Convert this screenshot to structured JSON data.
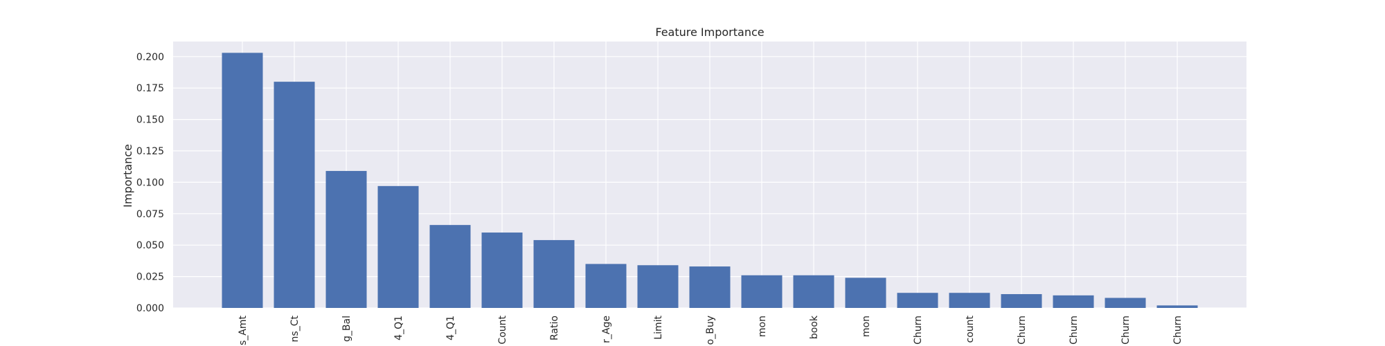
{
  "chart_data": {
    "type": "bar",
    "title": "Feature Importance",
    "xlabel": "",
    "ylabel": "Importance",
    "ylim": [
      0,
      0.212
    ],
    "yticks": [
      "0.000",
      "0.025",
      "0.050",
      "0.075",
      "0.100",
      "0.125",
      "0.150",
      "0.175",
      "0.200"
    ],
    "grid": true,
    "colors": {
      "bar": "#4c72b0",
      "plot_bg": "#eaeaf2",
      "grid": "#ffffff",
      "text": "#262626"
    },
    "categories": [
      "s_Amt",
      "ns_Ct",
      "g_Bal",
      "4_Q1",
      "4_Q1",
      "Count",
      "Ratio",
      "r_Age",
      "Limit",
      "o_Buy",
      "mon",
      "book",
      "mon",
      "Churn",
      "count",
      "Churn",
      "Churn",
      "Churn",
      "Churn"
    ],
    "values": [
      0.203,
      0.18,
      0.109,
      0.097,
      0.066,
      0.06,
      0.054,
      0.035,
      0.034,
      0.033,
      0.026,
      0.026,
      0.024,
      0.012,
      0.012,
      0.011,
      0.01,
      0.008,
      0.002
    ]
  }
}
